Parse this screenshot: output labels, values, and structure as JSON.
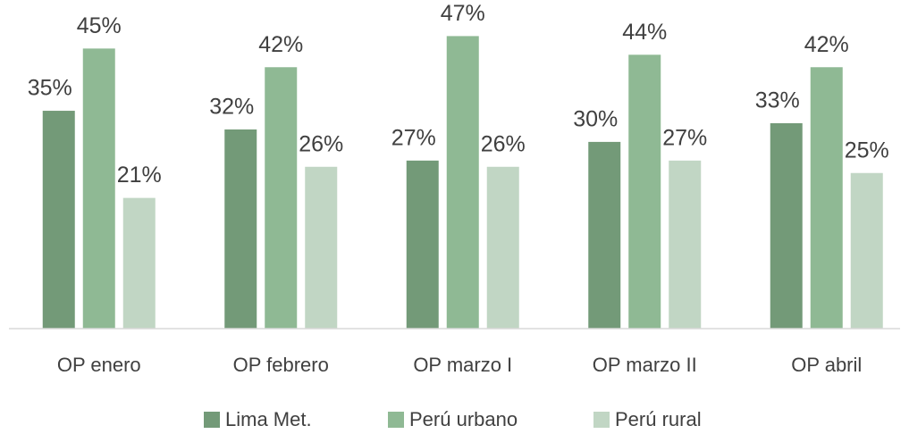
{
  "chart_data": {
    "type": "bar",
    "categories": [
      "OP enero",
      "OP febrero",
      "OP marzo I",
      "OP marzo II",
      "OP abril"
    ],
    "series": [
      {
        "name": "Lima Met.",
        "color": "#739a78",
        "values": [
          35,
          32,
          27,
          30,
          33
        ],
        "value_labels": [
          "35%",
          "32%",
          "27%",
          "30%",
          "33%"
        ]
      },
      {
        "name": "Perú urbano",
        "color": "#8fb994",
        "values": [
          45,
          42,
          47,
          44,
          42
        ],
        "value_labels": [
          "45%",
          "42%",
          "47%",
          "44%",
          "42%"
        ]
      },
      {
        "name": "Perú rural",
        "color": "#c1d6c4",
        "values": [
          21,
          26,
          26,
          27,
          25
        ],
        "value_labels": [
          "21%",
          "26%",
          "26%",
          "27%",
          "25%"
        ]
      }
    ]
  }
}
